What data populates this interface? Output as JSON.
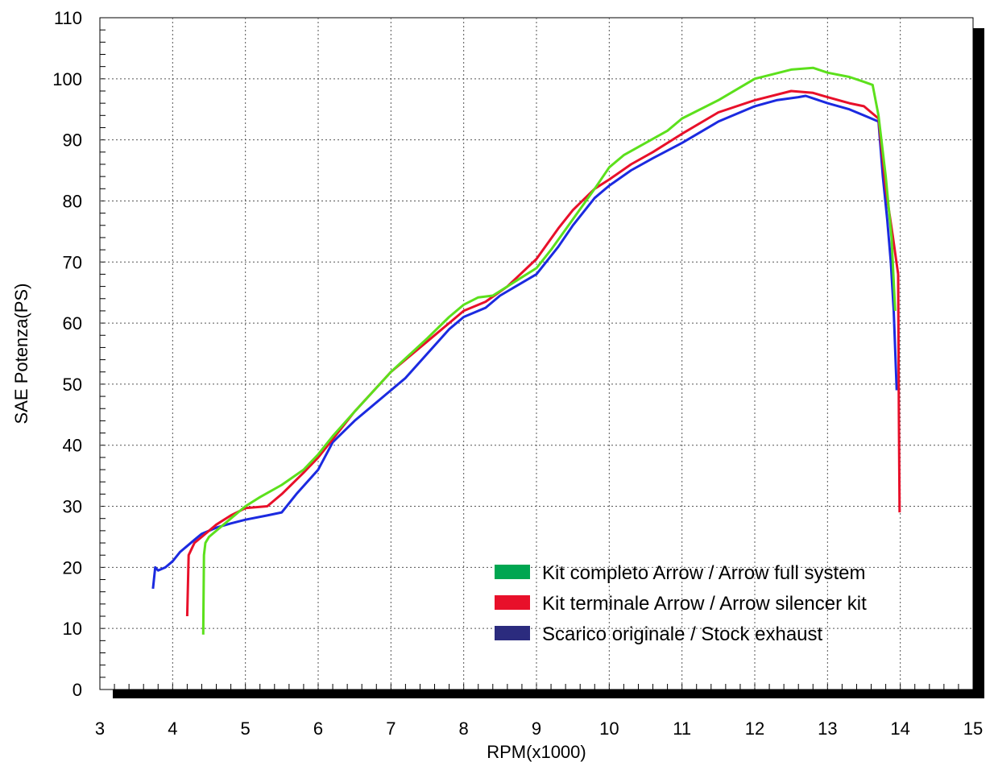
{
  "chart_data": {
    "type": "line",
    "xlabel": "RPM(x1000)",
    "ylabel": "SAE Potenza(PS)",
    "xlim": [
      3,
      15
    ],
    "ylim": [
      0,
      110
    ],
    "x_ticks": [
      3,
      4,
      5,
      6,
      7,
      8,
      9,
      10,
      11,
      12,
      13,
      14,
      15
    ],
    "y_ticks": [
      0,
      10,
      20,
      30,
      40,
      50,
      60,
      70,
      80,
      90,
      100,
      110
    ],
    "x_tick_labels": [
      "3",
      "4",
      "5",
      "6",
      "7",
      "8",
      "9",
      "10",
      "11",
      "12",
      "13",
      "14",
      "15"
    ],
    "y_tick_labels": [
      "0",
      "10",
      "20",
      "30",
      "40",
      "50",
      "60",
      "70",
      "80",
      "90",
      "100",
      "110"
    ],
    "grid": true,
    "legend_position": "bottom-right",
    "series": [
      {
        "name": "Kit completo Arrow / Arrow full system",
        "color": "#5ce01c",
        "swatch_color": "#00a651",
        "points": [
          [
            4.42,
            9
          ],
          [
            4.43,
            22
          ],
          [
            4.45,
            24
          ],
          [
            4.5,
            25
          ],
          [
            4.6,
            26
          ],
          [
            4.8,
            28
          ],
          [
            5.0,
            30
          ],
          [
            5.2,
            31.5
          ],
          [
            5.5,
            33.5
          ],
          [
            5.8,
            36
          ],
          [
            6.0,
            38.5
          ],
          [
            6.2,
            41.5
          ],
          [
            6.5,
            45.5
          ],
          [
            7.0,
            52
          ],
          [
            7.5,
            57.5
          ],
          [
            7.8,
            61
          ],
          [
            8.0,
            63
          ],
          [
            8.2,
            64.2
          ],
          [
            8.4,
            64.5
          ],
          [
            8.6,
            66
          ],
          [
            8.8,
            67.5
          ],
          [
            9.0,
            69
          ],
          [
            9.2,
            72
          ],
          [
            9.5,
            77
          ],
          [
            9.8,
            82
          ],
          [
            10.0,
            85.5
          ],
          [
            10.2,
            87.5
          ],
          [
            10.5,
            89.5
          ],
          [
            10.8,
            91.5
          ],
          [
            11.0,
            93.5
          ],
          [
            11.5,
            96.5
          ],
          [
            12.0,
            100
          ],
          [
            12.5,
            101.5
          ],
          [
            12.8,
            101.8
          ],
          [
            13.0,
            101
          ],
          [
            13.3,
            100.3
          ],
          [
            13.5,
            99.5
          ],
          [
            13.62,
            99
          ],
          [
            13.7,
            94
          ],
          [
            13.8,
            84
          ],
          [
            13.88,
            74
          ],
          [
            13.93,
            62
          ]
        ]
      },
      {
        "name": "Kit terminale Arrow / Arrow silencer kit",
        "color": "#e8102a",
        "swatch_color": "#e8102a",
        "points": [
          [
            4.2,
            12
          ],
          [
            4.22,
            22
          ],
          [
            4.3,
            24
          ],
          [
            4.4,
            25
          ],
          [
            4.6,
            27
          ],
          [
            4.8,
            28.5
          ],
          [
            5.0,
            29.7
          ],
          [
            5.3,
            30
          ],
          [
            5.5,
            32
          ],
          [
            5.8,
            35.5
          ],
          [
            6.0,
            38
          ],
          [
            6.3,
            42.5
          ],
          [
            6.5,
            45.5
          ],
          [
            7.0,
            52
          ],
          [
            7.5,
            57
          ],
          [
            7.8,
            60
          ],
          [
            8.0,
            62
          ],
          [
            8.3,
            63.5
          ],
          [
            8.6,
            66
          ],
          [
            9.0,
            70.5
          ],
          [
            9.3,
            75.5
          ],
          [
            9.5,
            78.5
          ],
          [
            9.8,
            82
          ],
          [
            10.0,
            83.5
          ],
          [
            10.3,
            86
          ],
          [
            10.6,
            88
          ],
          [
            11.0,
            91
          ],
          [
            11.5,
            94.5
          ],
          [
            12.0,
            96.5
          ],
          [
            12.5,
            98
          ],
          [
            12.8,
            97.7
          ],
          [
            13.0,
            97
          ],
          [
            13.3,
            96
          ],
          [
            13.5,
            95.5
          ],
          [
            13.7,
            93.5
          ],
          [
            13.8,
            82
          ],
          [
            13.9,
            74
          ],
          [
            13.97,
            68
          ],
          [
            13.98,
            45
          ],
          [
            13.99,
            29
          ]
        ]
      },
      {
        "name": "Scarico originale / Stock exhaust",
        "color": "#1b2ae0",
        "swatch_color": "#2b2b7e",
        "points": [
          [
            3.73,
            16.5
          ],
          [
            3.76,
            20
          ],
          [
            3.8,
            19.5
          ],
          [
            3.9,
            20
          ],
          [
            4.0,
            21
          ],
          [
            4.1,
            22.5
          ],
          [
            4.2,
            23.5
          ],
          [
            4.3,
            24.5
          ],
          [
            4.4,
            25.5
          ],
          [
            4.6,
            26.5
          ],
          [
            4.8,
            27.2
          ],
          [
            5.0,
            27.8
          ],
          [
            5.3,
            28.5
          ],
          [
            5.5,
            29
          ],
          [
            5.7,
            32
          ],
          [
            6.0,
            36
          ],
          [
            6.2,
            40.5
          ],
          [
            6.5,
            44
          ],
          [
            7.0,
            49
          ],
          [
            7.2,
            51
          ],
          [
            7.5,
            55
          ],
          [
            7.8,
            59
          ],
          [
            8.0,
            61
          ],
          [
            8.3,
            62.5
          ],
          [
            8.5,
            64.5
          ],
          [
            9.0,
            68
          ],
          [
            9.3,
            72.5
          ],
          [
            9.5,
            76
          ],
          [
            9.8,
            80.5
          ],
          [
            10.0,
            82.5
          ],
          [
            10.3,
            85
          ],
          [
            10.6,
            87
          ],
          [
            11.0,
            89.5
          ],
          [
            11.5,
            93
          ],
          [
            12.0,
            95.5
          ],
          [
            12.3,
            96.5
          ],
          [
            12.6,
            97
          ],
          [
            12.7,
            97.2
          ],
          [
            13.0,
            96
          ],
          [
            13.3,
            95
          ],
          [
            13.5,
            94
          ],
          [
            13.7,
            93
          ],
          [
            13.76,
            84
          ],
          [
            13.82,
            77
          ],
          [
            13.87,
            70
          ],
          [
            13.91,
            62
          ],
          [
            13.95,
            49
          ]
        ]
      }
    ]
  }
}
